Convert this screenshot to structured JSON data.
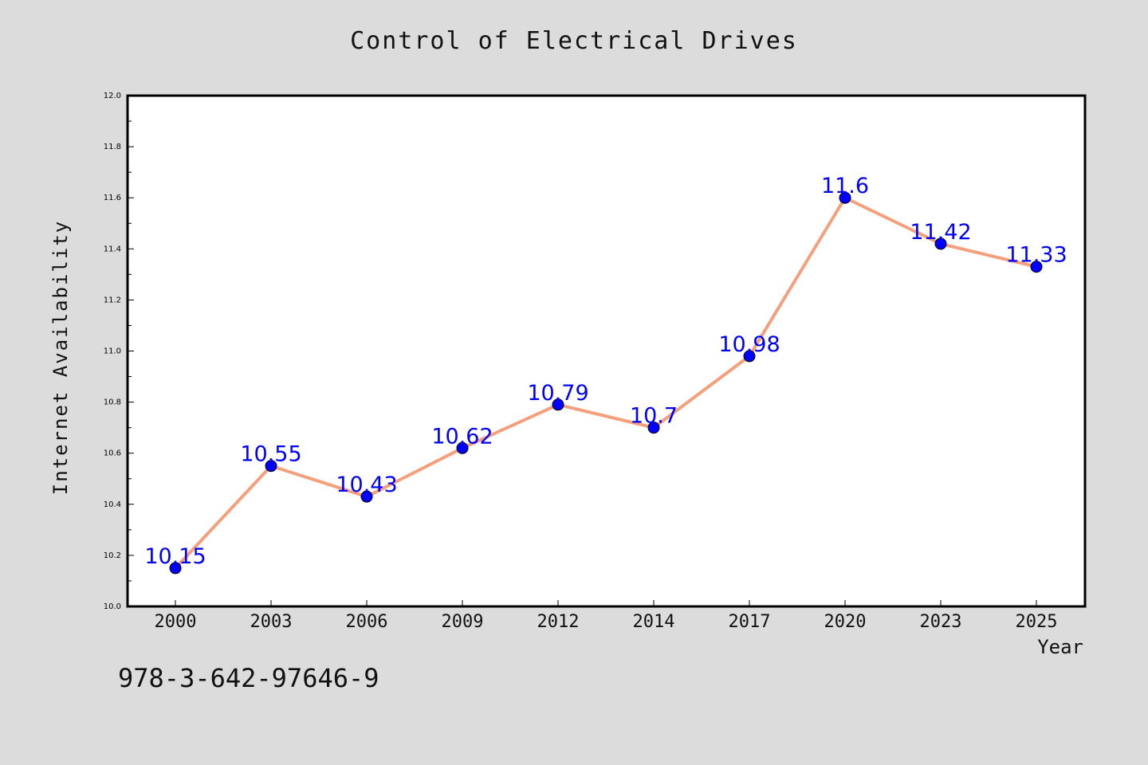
{
  "chart_data": {
    "type": "line",
    "title": "Control of Electrical Drives",
    "xlabel": "Year",
    "ylabel": "Internet Availability",
    "categories": [
      "2000",
      "2003",
      "2006",
      "2009",
      "2012",
      "2014",
      "2017",
      "2020",
      "2023",
      "2025"
    ],
    "series": [
      {
        "values": [
          10.15,
          10.55,
          10.43,
          10.62,
          10.79,
          10.7,
          10.98,
          11.6,
          11.42,
          11.33
        ],
        "data_labels": [
          "10.15",
          "10.55",
          "10.43",
          "10.62",
          "10.79",
          "10.7",
          "10.98",
          "11.6",
          "11.42",
          "11.33"
        ],
        "line_color": "#f4a07c",
        "marker_color": "#0000ff",
        "label_color": "#0000ff"
      }
    ],
    "ylim": [
      10.0,
      12.0
    ],
    "yticks": [
      "10.0",
      "10.2",
      "10.4",
      "10.6",
      "10.8",
      "11.0",
      "11.2",
      "11.4",
      "11.6",
      "11.8",
      "12.0"
    ],
    "grid": false,
    "legend": "none",
    "background": "#dcdcdc",
    "plot_background": "#ffffff"
  },
  "footer": {
    "isbn": "978-3-642-97646-9"
  }
}
